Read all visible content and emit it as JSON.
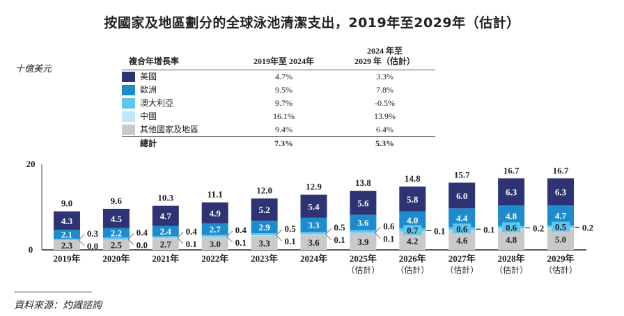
{
  "title": "按國家及地區劃分的全球泳池清潔支出，2019年至2029年（估計）",
  "unit": "十億美元",
  "cagr_table": {
    "header": [
      "複合年增長率",
      "2019年至 2024年",
      "2024 年至\n2029 年（估計）"
    ],
    "rows": [
      {
        "name": "美國",
        "color": "#2e3473",
        "a": "4.7%",
        "b": "3.3%"
      },
      {
        "name": "歐洲",
        "color": "#1e8ccc",
        "a": "9.5%",
        "b": "7.8%"
      },
      {
        "name": "澳大利亞",
        "color": "#5ec6ef",
        "a": "9.7%",
        "b": "-0.5%"
      },
      {
        "name": "中國",
        "color": "#bfe6f7",
        "a": "16.1%",
        "b": "13.9%"
      },
      {
        "name": "其他國家及地區",
        "color": "#c8c9cb",
        "a": "9.4%",
        "b": "6.4%"
      }
    ],
    "total": {
      "name": "總計",
      "a": "7.3%",
      "b": "5.3%"
    }
  },
  "chart_data": {
    "type": "bar",
    "stacked": true,
    "categories": [
      "2019年",
      "2020年",
      "2021年",
      "2022年",
      "2023年",
      "2024年",
      "2025年\n（估計）",
      "2026年\n（估計）",
      "2027年\n（估計）",
      "2028年\n（估計）",
      "2029年\n（估計）"
    ],
    "series": [
      {
        "name": "其他國家及地區",
        "color": "#c8c9cb",
        "values": [
          2.3,
          2.5,
          2.7,
          3.0,
          3.3,
          3.6,
          3.9,
          4.2,
          4.6,
          4.8,
          5.0
        ]
      },
      {
        "name": "中國",
        "color": "#bfe6f7",
        "values": [
          0.0,
          0.0,
          0.1,
          0.1,
          0.1,
          0.1,
          0.1,
          0.1,
          0.1,
          0.2,
          0.2
        ]
      },
      {
        "name": "澳大利亞",
        "color": "#5ec6ef",
        "values": [
          0.3,
          0.4,
          0.4,
          0.4,
          0.5,
          0.5,
          0.6,
          0.7,
          0.6,
          0.6,
          0.5
        ]
      },
      {
        "name": "歐洲",
        "color": "#1e8ccc",
        "values": [
          2.1,
          2.2,
          2.4,
          2.7,
          2.9,
          3.3,
          3.6,
          4.0,
          4.4,
          4.8,
          4.7
        ]
      },
      {
        "name": "美國",
        "color": "#2e3473",
        "values": [
          4.3,
          4.5,
          4.7,
          4.9,
          5.2,
          5.4,
          5.6,
          5.8,
          6.0,
          6.3,
          6.3
        ]
      }
    ],
    "totals": [
      "9.0",
      "9.6",
      "10.3",
      "11.1",
      "12.0",
      "12.9",
      "13.8",
      "14.8",
      "15.7",
      "16.7",
      "16.7"
    ],
    "ylabel": "十億美元",
    "ylim": [
      0,
      20
    ],
    "yticks": [
      "0",
      "20"
    ],
    "grid": false
  },
  "source": "資料來源：灼識諮詢"
}
